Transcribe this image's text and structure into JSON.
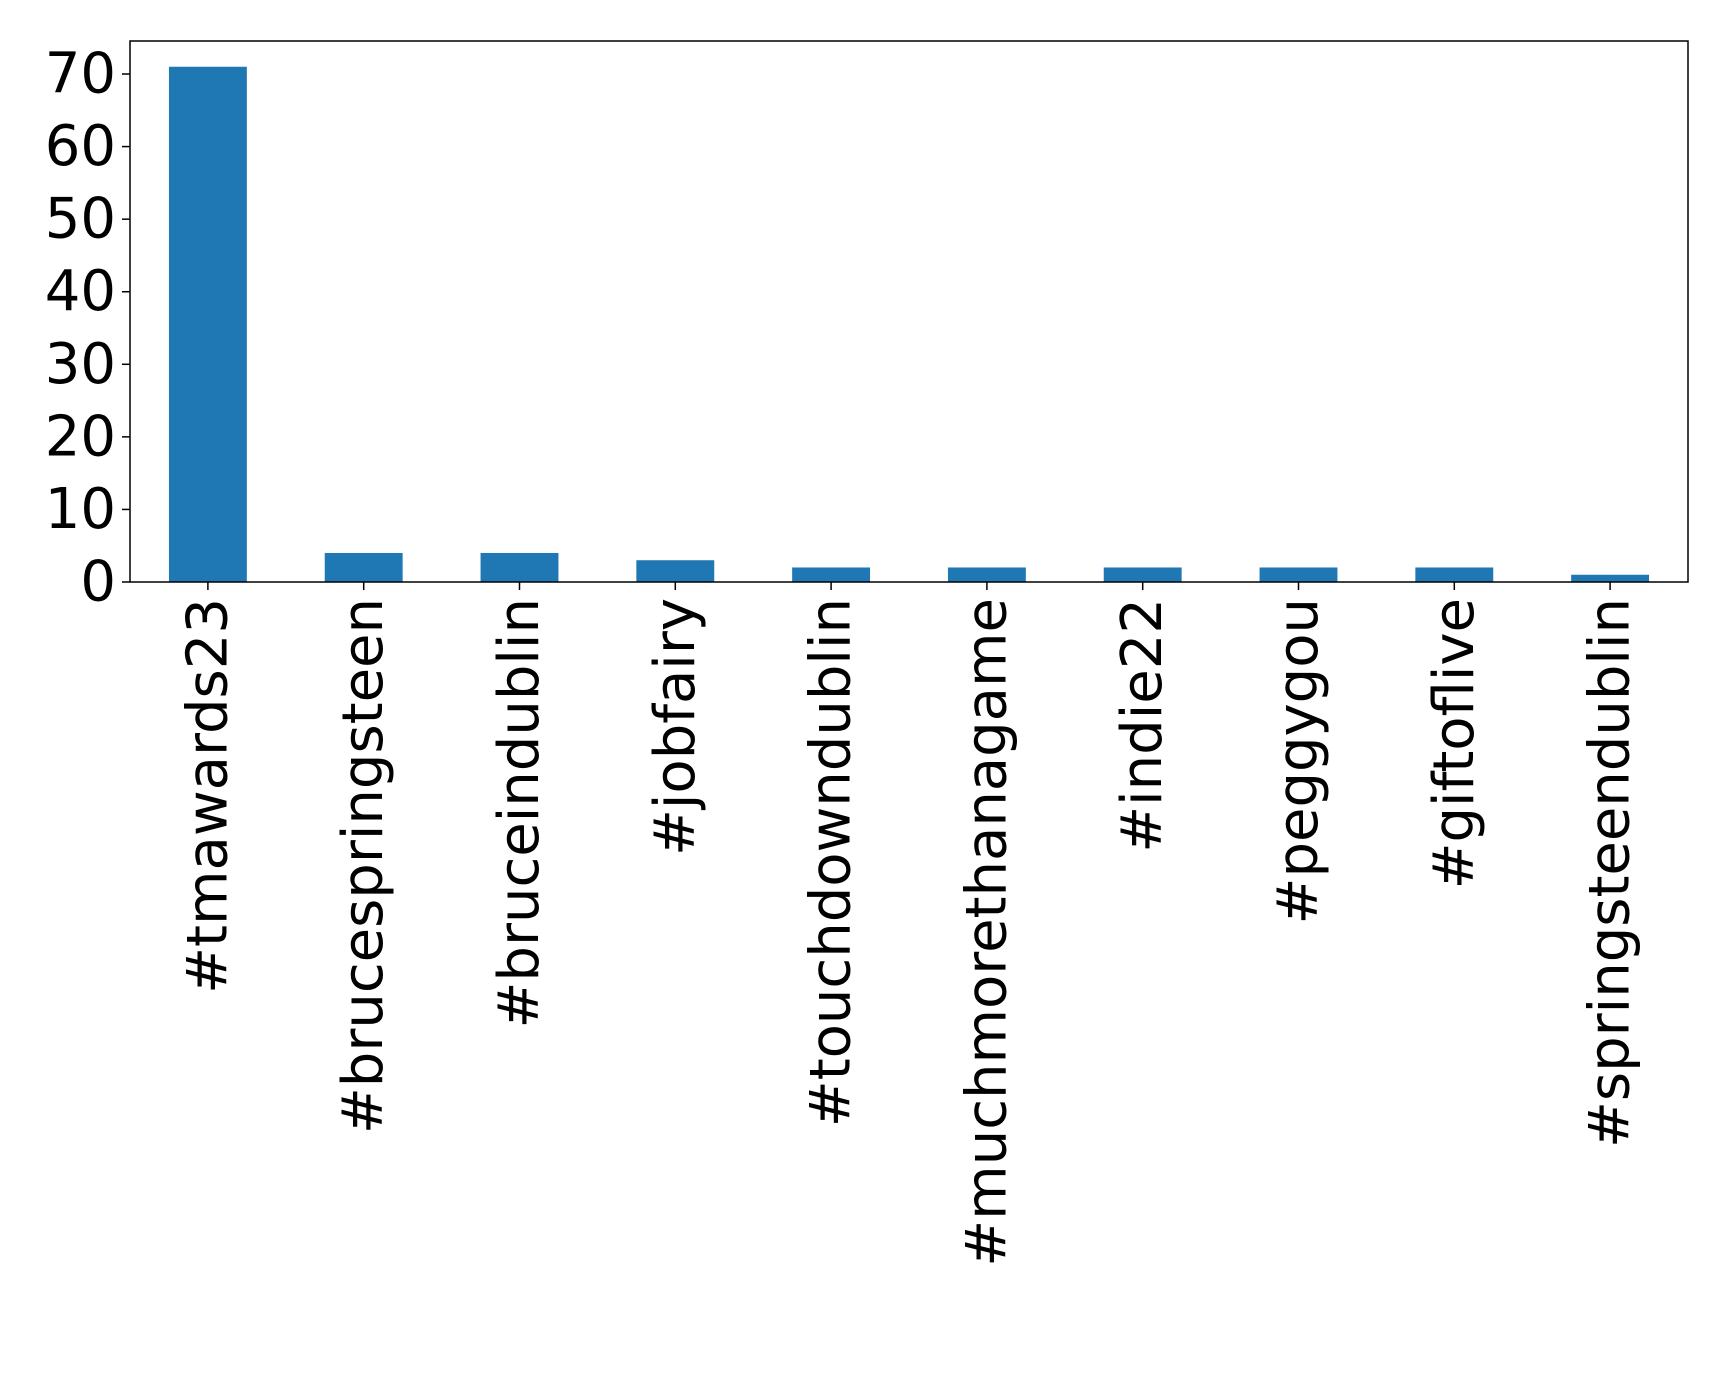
{
  "chart_data": {
    "type": "bar",
    "title": "",
    "xlabel": "",
    "ylabel": "",
    "categories": [
      "#tmawards23",
      "#brucespringsteen",
      "#bruceindublin",
      "#jobfairy",
      "#touchdowndublin",
      "#muchmorethanagame",
      "#indie22",
      "#peggygou",
      "#giftoflive",
      "#springsteendublin"
    ],
    "values": [
      71,
      4,
      4,
      3,
      2,
      2,
      2,
      2,
      2,
      1
    ],
    "ylim": [
      0,
      74.55
    ],
    "yticks": [
      0,
      10,
      20,
      30,
      40,
      50,
      60,
      70
    ],
    "grid": false,
    "legend": "none",
    "bar_color": "#1f77b4"
  }
}
